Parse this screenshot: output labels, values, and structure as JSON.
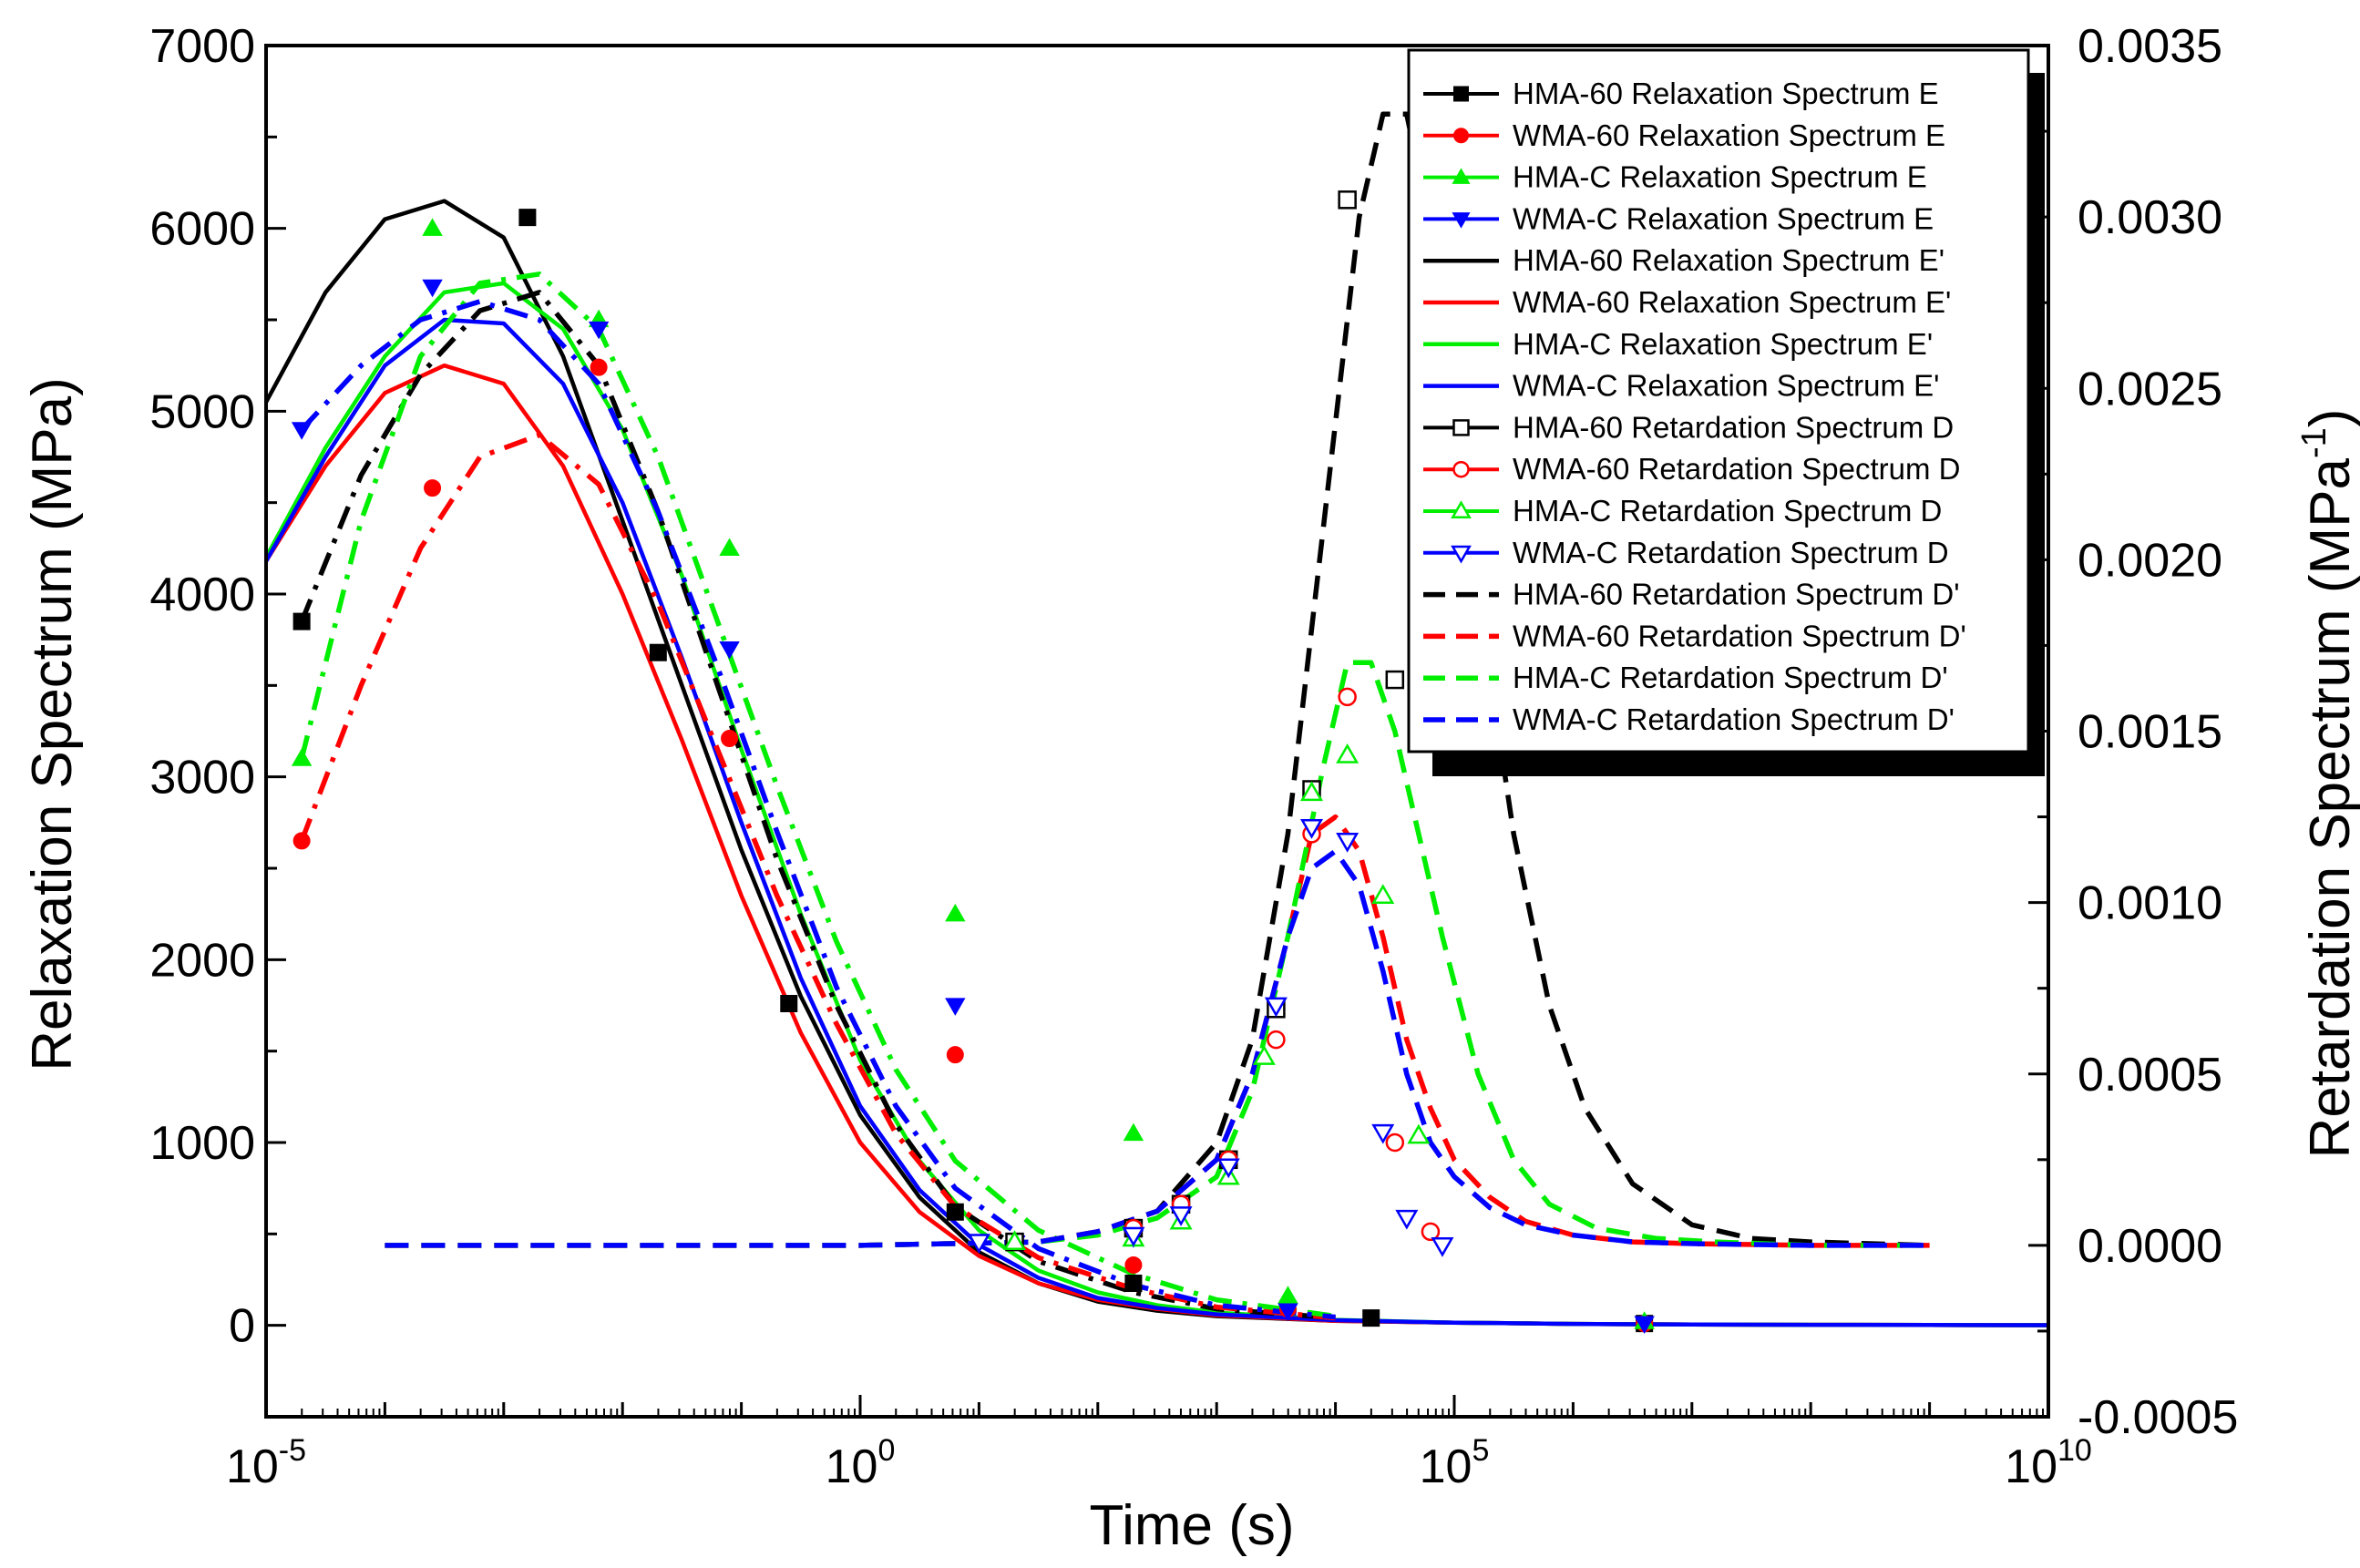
{
  "chart_data": {
    "type": "line",
    "title": "",
    "xlabel": "Time (s)",
    "ylabel_left": "Relaxation Spectrum (MPa)",
    "ylabel_right_base": "Retardation Spectrum (MPa",
    "ylabel_right_sup": "-1",
    "ylabel_right_end": ")",
    "x_scale": "log",
    "x_range_log10": [
      -5,
      10
    ],
    "x_ticks": [
      {
        "log": -5,
        "base": "10",
        "exp": "-5"
      },
      {
        "log": 0,
        "base": "10",
        "exp": "0"
      },
      {
        "log": 5,
        "base": "10",
        "exp": "5"
      },
      {
        "log": 10,
        "base": "10",
        "exp": "10"
      }
    ],
    "ylim_left": [
      -500,
      7000
    ],
    "y_ticks_left": [
      "0",
      "1000",
      "2000",
      "3000",
      "4000",
      "5000",
      "6000",
      "7000"
    ],
    "ylim_right": [
      -0.0005,
      0.0035
    ],
    "y_ticks_right": [
      "-0.0005",
      "0.0000",
      "0.0005",
      "0.0010",
      "0.0015",
      "0.0020",
      "0.0025",
      "0.0030",
      "0.0035"
    ],
    "legend_position": "top-right",
    "legend": [
      "HMA-60  Relaxation Spectrum E",
      "WMA-60 Relaxation Spectrum E",
      "HMA-C   Relaxation Spectrum E",
      "WMA-C   Relaxation Spectrum E",
      "HMA-60   Relaxation Spectrum E'",
      "WMA-60  Relaxation Spectrum E'",
      "HMA-C     Relaxation Spectrum E'",
      "WMA-C     Relaxation Spectrum E'",
      "HMA-60    Retardation Spectrum D",
      "WMA-60    Retardation Spectrum D",
      "HMA-C    Retardation Spectrum D",
      "WMA-C    Retardation Spectrum D",
      "HMA-60    Retardation Spectrum D'",
      "WMA-60    Retardation Spectrum D'",
      "HMA-C      Retardation Spectrum D'",
      "WMA-C      Retardation Spectrum D'"
    ],
    "colors": {
      "HMA-60": "#000000",
      "WMA-60": "#ff0000",
      "HMA-C": "#00ee00",
      "WMA-C": "#0000ff"
    },
    "series": [
      {
        "name": "HMA-60 Relaxation Spectrum E",
        "axis": "left",
        "kind": "points",
        "marker": "filled-square",
        "color": "#000000",
        "x_log": [
          -4.7,
          -2.8,
          -1.7,
          -0.6,
          0.8,
          2.3,
          4.3,
          6.6
        ],
        "y": [
          3850,
          6060,
          3680,
          1760,
          620,
          230,
          40,
          10
        ]
      },
      {
        "name": "WMA-60 Relaxation Spectrum E",
        "axis": "left",
        "kind": "points",
        "marker": "filled-circle",
        "color": "#ff0000",
        "x_log": [
          -4.7,
          -3.6,
          -2.2,
          -1.1,
          0.8,
          2.3,
          3.6,
          6.6
        ],
        "y": [
          2650,
          4580,
          5240,
          3210,
          1480,
          330,
          90,
          10
        ]
      },
      {
        "name": "HMA-C Relaxation Spectrum E",
        "axis": "left",
        "kind": "points",
        "marker": "filled-triangle-up",
        "color": "#00ee00",
        "x_log": [
          -4.7,
          -3.6,
          -2.2,
          -1.1,
          0.8,
          2.3,
          3.6,
          6.6
        ],
        "y": [
          3100,
          6000,
          5500,
          4250,
          2250,
          1050,
          160,
          20
        ]
      },
      {
        "name": "WMA-C Relaxation Spectrum E",
        "axis": "left",
        "kind": "points",
        "marker": "filled-triangle-down",
        "color": "#0000ff",
        "x_log": [
          -4.7,
          -3.6,
          -2.2,
          -1.1,
          0.8,
          2.3,
          3.6,
          6.6
        ],
        "y": [
          4900,
          5680,
          5450,
          3700,
          1750,
          480,
          80,
          10
        ]
      },
      {
        "name": "HMA-60 Relaxation Spectrum E'",
        "axis": "left",
        "kind": "line",
        "dash": "solid",
        "color": "#000000",
        "x_log": [
          -5,
          -4.5,
          -4,
          -3.5,
          -3,
          -2.5,
          -2,
          -1.5,
          -1,
          -0.5,
          0,
          0.5,
          1,
          1.5,
          2,
          2.5,
          3,
          4,
          5,
          6,
          7,
          8,
          9,
          10
        ],
        "y": [
          5050,
          5650,
          6050,
          6150,
          5950,
          5300,
          4400,
          3500,
          2600,
          1800,
          1150,
          700,
          400,
          230,
          130,
          80,
          50,
          25,
          15,
          8,
          5,
          3,
          2,
          1
        ]
      },
      {
        "name": "WMA-60 Relaxation Spectrum E'",
        "axis": "left",
        "kind": "line",
        "dash": "solid",
        "color": "#ff0000",
        "x_log": [
          -5,
          -4.5,
          -4,
          -3.5,
          -3,
          -2.5,
          -2,
          -1.5,
          -1,
          -0.5,
          0,
          0.5,
          1,
          1.5,
          2,
          2.5,
          3,
          4,
          5,
          6,
          7,
          8,
          9,
          10
        ],
        "y": [
          4180,
          4700,
          5100,
          5250,
          5150,
          4700,
          4000,
          3200,
          2350,
          1600,
          1000,
          620,
          380,
          230,
          140,
          90,
          55,
          25,
          15,
          8,
          5,
          3,
          2,
          1
        ]
      },
      {
        "name": "HMA-C Relaxation Spectrum E'",
        "axis": "left",
        "kind": "line",
        "dash": "solid",
        "color": "#00ee00",
        "x_log": [
          -5,
          -4.5,
          -4,
          -3.5,
          -3,
          -2.5,
          -2,
          -1.5,
          -1,
          -0.5,
          0,
          0.5,
          1,
          1.5,
          2,
          2.5,
          3,
          4,
          5,
          6,
          7,
          8,
          9,
          10
        ],
        "y": [
          4200,
          4800,
          5300,
          5650,
          5700,
          5450,
          4900,
          4100,
          3150,
          2250,
          1450,
          900,
          520,
          300,
          180,
          110,
          70,
          30,
          15,
          8,
          5,
          3,
          2,
          1
        ]
      },
      {
        "name": "WMA-C Relaxation Spectrum E'",
        "axis": "left",
        "kind": "line",
        "dash": "solid",
        "color": "#0000ff",
        "x_log": [
          -5,
          -4.5,
          -4,
          -3.5,
          -3,
          -2.5,
          -2,
          -1.5,
          -1,
          -0.5,
          0,
          0.5,
          1,
          1.5,
          2,
          2.5,
          3,
          4,
          5,
          6,
          7,
          8,
          9,
          10
        ],
        "y": [
          4180,
          4750,
          5250,
          5500,
          5480,
          5150,
          4500,
          3650,
          2750,
          1900,
          1200,
          740,
          440,
          260,
          150,
          95,
          60,
          28,
          15,
          8,
          5,
          3,
          2,
          1
        ]
      },
      {
        "name": "HMA-60 Relaxation Spectrum E' (dash-dot)",
        "axis": "left",
        "kind": "line",
        "dash": "dashdot",
        "color": "#000000",
        "x_log": [
          -4.7,
          -4.2,
          -3.7,
          -3.2,
          -2.7,
          -2.2,
          -1.7,
          -1.2,
          -0.7,
          -0.2,
          0.3,
          0.8,
          1.5,
          2.3,
          3,
          4
        ],
        "y": [
          3850,
          4650,
          5200,
          5550,
          5650,
          5250,
          4450,
          3500,
          2550,
          1750,
          1100,
          650,
          350,
          180,
          90,
          40
        ]
      },
      {
        "name": "WMA-60 Relaxation Spectrum E' (dash-dot)",
        "axis": "left",
        "kind": "line",
        "dash": "dashdot",
        "color": "#ff0000",
        "x_log": [
          -4.7,
          -4.2,
          -3.7,
          -3.2,
          -2.7,
          -2.2,
          -1.7,
          -1.2,
          -0.7,
          -0.2,
          0.3,
          0.8,
          1.5,
          2.3,
          3,
          4
        ],
        "y": [
          2650,
          3500,
          4250,
          4750,
          4870,
          4600,
          3950,
          3150,
          2350,
          1650,
          1050,
          650,
          370,
          200,
          100,
          40
        ]
      },
      {
        "name": "HMA-C Relaxation Spectrum E' (dash-dot)",
        "axis": "left",
        "kind": "line",
        "dash": "dashdot",
        "color": "#00ee00",
        "x_log": [
          -4.7,
          -4.2,
          -3.7,
          -3.2,
          -2.7,
          -2.2,
          -1.7,
          -1.2,
          -0.7,
          -0.2,
          0.3,
          0.8,
          1.5,
          2.3,
          3,
          4
        ],
        "y": [
          3100,
          4400,
          5300,
          5700,
          5750,
          5450,
          4750,
          3850,
          2950,
          2100,
          1400,
          900,
          520,
          280,
          140,
          50
        ]
      },
      {
        "name": "WMA-C Relaxation Spectrum E' (dash-dot)",
        "axis": "left",
        "kind": "line",
        "dash": "dashdot",
        "color": "#0000ff",
        "x_log": [
          -4.7,
          -4.2,
          -3.7,
          -3.2,
          -2.7,
          -2.2,
          -1.7,
          -1.2,
          -0.7,
          -0.2,
          0.3,
          0.8,
          1.5,
          2.3,
          3,
          4
        ],
        "y": [
          4900,
          5250,
          5500,
          5600,
          5500,
          5150,
          4450,
          3600,
          2700,
          1850,
          1200,
          750,
          420,
          220,
          110,
          45
        ]
      },
      {
        "name": "HMA-60 Retardation Spectrum D",
        "axis": "right",
        "kind": "points",
        "marker": "open-square",
        "color": "#000000",
        "x_log": [
          1.3,
          2.3,
          2.7,
          3.1,
          3.5,
          3.8,
          4.1,
          4.5
        ],
        "y": [
          1e-05,
          5e-05,
          0.00012,
          0.00025,
          0.00069,
          0.00133,
          0.00305,
          0.00165
        ]
      },
      {
        "name": "WMA-60 Retardation Spectrum D",
        "axis": "right",
        "kind": "points",
        "marker": "open-circle",
        "color": "#ff0000",
        "x_log": [
          2.3,
          2.7,
          3.1,
          3.5,
          3.8,
          4.1,
          4.5,
          4.8
        ],
        "y": [
          5e-05,
          0.00012,
          0.00025,
          0.0006,
          0.0012,
          0.0016,
          0.0003,
          4e-05
        ]
      },
      {
        "name": "HMA-C Retardation Spectrum D",
        "axis": "right",
        "kind": "points",
        "marker": "open-triangle-up",
        "color": "#00ee00",
        "x_log": [
          1.3,
          2.3,
          2.7,
          3.1,
          3.4,
          3.8,
          4.1,
          4.4,
          4.7
        ],
        "y": [
          1e-05,
          2e-05,
          7e-05,
          0.0002,
          0.00055,
          0.00132,
          0.00143,
          0.00102,
          0.00032
        ]
      },
      {
        "name": "WMA-C Retardation Spectrum D",
        "axis": "right",
        "kind": "points",
        "marker": "open-triangle-down",
        "color": "#0000ff",
        "x_log": [
          1.0,
          2.3,
          2.7,
          3.1,
          3.5,
          3.8,
          4.1,
          4.4,
          4.6,
          4.9
        ],
        "y": [
          1e-05,
          3e-05,
          9e-05,
          0.00023,
          0.0007,
          0.00122,
          0.00118,
          0.00033,
          8e-05,
          0.0
        ]
      },
      {
        "name": "HMA-60 Retardation Spectrum D'",
        "axis": "right",
        "kind": "line",
        "dash": "dashed",
        "color": "#000000",
        "x_log": [
          -4,
          -2,
          0,
          1.5,
          2,
          2.5,
          3,
          3.3,
          3.6,
          3.9,
          4.2,
          4.4,
          4.6,
          4.9,
          5.2,
          5.5,
          5.8,
          6.1,
          6.5,
          7,
          7.5,
          8,
          8.5,
          9
        ],
        "y": [
          0,
          0,
          0,
          1e-05,
          4e-05,
          0.0001,
          0.0003,
          0.0006,
          0.0012,
          0.0021,
          0.003,
          0.0033,
          0.0033,
          0.0028,
          0.0019,
          0.0012,
          0.0007,
          0.0004,
          0.00018,
          6e-05,
          2e-05,
          1e-05,
          5e-06,
          0
        ]
      },
      {
        "name": "WMA-60 Retardation Spectrum D'",
        "axis": "right",
        "kind": "line",
        "dash": "dashed",
        "color": "#ff0000",
        "x_log": [
          -4,
          -2,
          0,
          1.5,
          2,
          2.5,
          3,
          3.3,
          3.6,
          3.8,
          4.0,
          4.2,
          4.4,
          4.6,
          4.8,
          5.0,
          5.3,
          5.6,
          6,
          6.5,
          7,
          8,
          9
        ],
        "y": [
          0,
          0,
          0,
          1e-05,
          4e-05,
          0.0001,
          0.00025,
          0.0005,
          0.0009,
          0.0012,
          0.00125,
          0.00115,
          0.0009,
          0.0006,
          0.0004,
          0.00025,
          0.00014,
          7e-05,
          3e-05,
          1e-05,
          5e-06,
          0,
          0
        ]
      },
      {
        "name": "HMA-C Retardation Spectrum D'",
        "axis": "right",
        "kind": "line",
        "dash": "dashed",
        "color": "#00ee00",
        "x_log": [
          -4,
          -2,
          0,
          1.5,
          2,
          2.5,
          3,
          3.3,
          3.6,
          3.9,
          4.1,
          4.3,
          4.5,
          4.7,
          4.9,
          5.2,
          5.5,
          5.8,
          6.2,
          6.7,
          7.2,
          8,
          9
        ],
        "y": [
          0,
          0,
          0,
          1e-05,
          3e-05,
          8e-05,
          0.0002,
          0.00045,
          0.0009,
          0.0014,
          0.0017,
          0.0017,
          0.0015,
          0.0012,
          0.0009,
          0.0005,
          0.00025,
          0.00012,
          5e-05,
          2e-05,
          1e-05,
          0,
          0
        ]
      },
      {
        "name": "WMA-C Retardation Spectrum D'",
        "axis": "right",
        "kind": "line",
        "dash": "dashed",
        "color": "#0000ff",
        "x_log": [
          -4,
          -2,
          0,
          1.5,
          2,
          2.5,
          3,
          3.3,
          3.6,
          3.8,
          4.0,
          4.2,
          4.4,
          4.6,
          4.8,
          5.0,
          5.3,
          5.6,
          6,
          6.5,
          7,
          8,
          9
        ],
        "y": [
          0,
          0,
          0,
          1e-05,
          4e-05,
          0.0001,
          0.00025,
          0.0005,
          0.0009,
          0.0011,
          0.00115,
          0.00105,
          0.0008,
          0.0005,
          0.0003,
          0.0002,
          0.00011,
          6e-05,
          3e-05,
          1e-05,
          5e-06,
          0,
          0
        ]
      }
    ]
  }
}
